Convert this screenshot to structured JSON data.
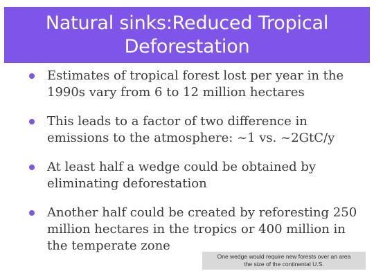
{
  "title": {
    "line1": "Natural sinks:Reduced Tropical",
    "line2": "Deforestation"
  },
  "bullets": [
    "Estimates of tropical forest lost per year in the 1990s vary from 6 to 12 million hectares",
    "This leads to a factor of two difference in emissions to the atmosphere: ~1 vs. ~2GtC/y",
    "At least half a wedge could be obtained by eliminating deforestation",
    "Another half could be created by reforesting 250 million hectares in the tropics or 400 million in the temperate zone"
  ],
  "footnote": {
    "line1": "One wedge would require new forests over an area",
    "line2": "the size of the continental U.S."
  },
  "colors": {
    "accent": "#7f54e9",
    "body_text": "#3a3a3a",
    "footnote_bg": "#d9d9d9"
  }
}
